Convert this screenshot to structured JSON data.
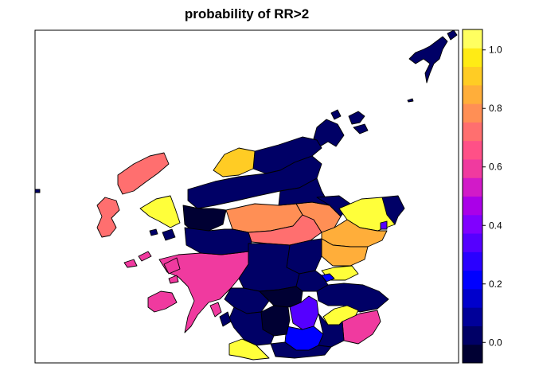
{
  "title": "probability of RR>2",
  "colorbar": {
    "bands": [
      "#000033",
      "#000066",
      "#000099",
      "#0000CC",
      "#0000FF",
      "#2A00FF",
      "#5500FF",
      "#8000FF",
      "#AA00E8",
      "#D21AC8",
      "#F03A9F",
      "#FF5087",
      "#FF6F6F",
      "#FF8F55",
      "#FFAE3A",
      "#FFCC24",
      "#FFEB15",
      "#FFFF60"
    ],
    "range": [
      -0.07,
      1.07
    ],
    "ticks": [
      "0.0",
      "0.2",
      "0.4",
      "0.6",
      "0.8",
      "1.0"
    ],
    "tick_values": [
      0.0,
      0.2,
      0.4,
      0.6,
      0.8,
      1.0
    ]
  },
  "palette": {
    "navy": "#000066",
    "dark_navy": "#000033",
    "blue": "#0000FF",
    "violet": "#5500FF",
    "pink": "#F03A9F",
    "salmon": "#FF6F6F",
    "orange": "#FF8F55",
    "amber": "#FFAE3A",
    "gold": "#FFCC24",
    "yellow": "#FFFF3A"
  }
}
